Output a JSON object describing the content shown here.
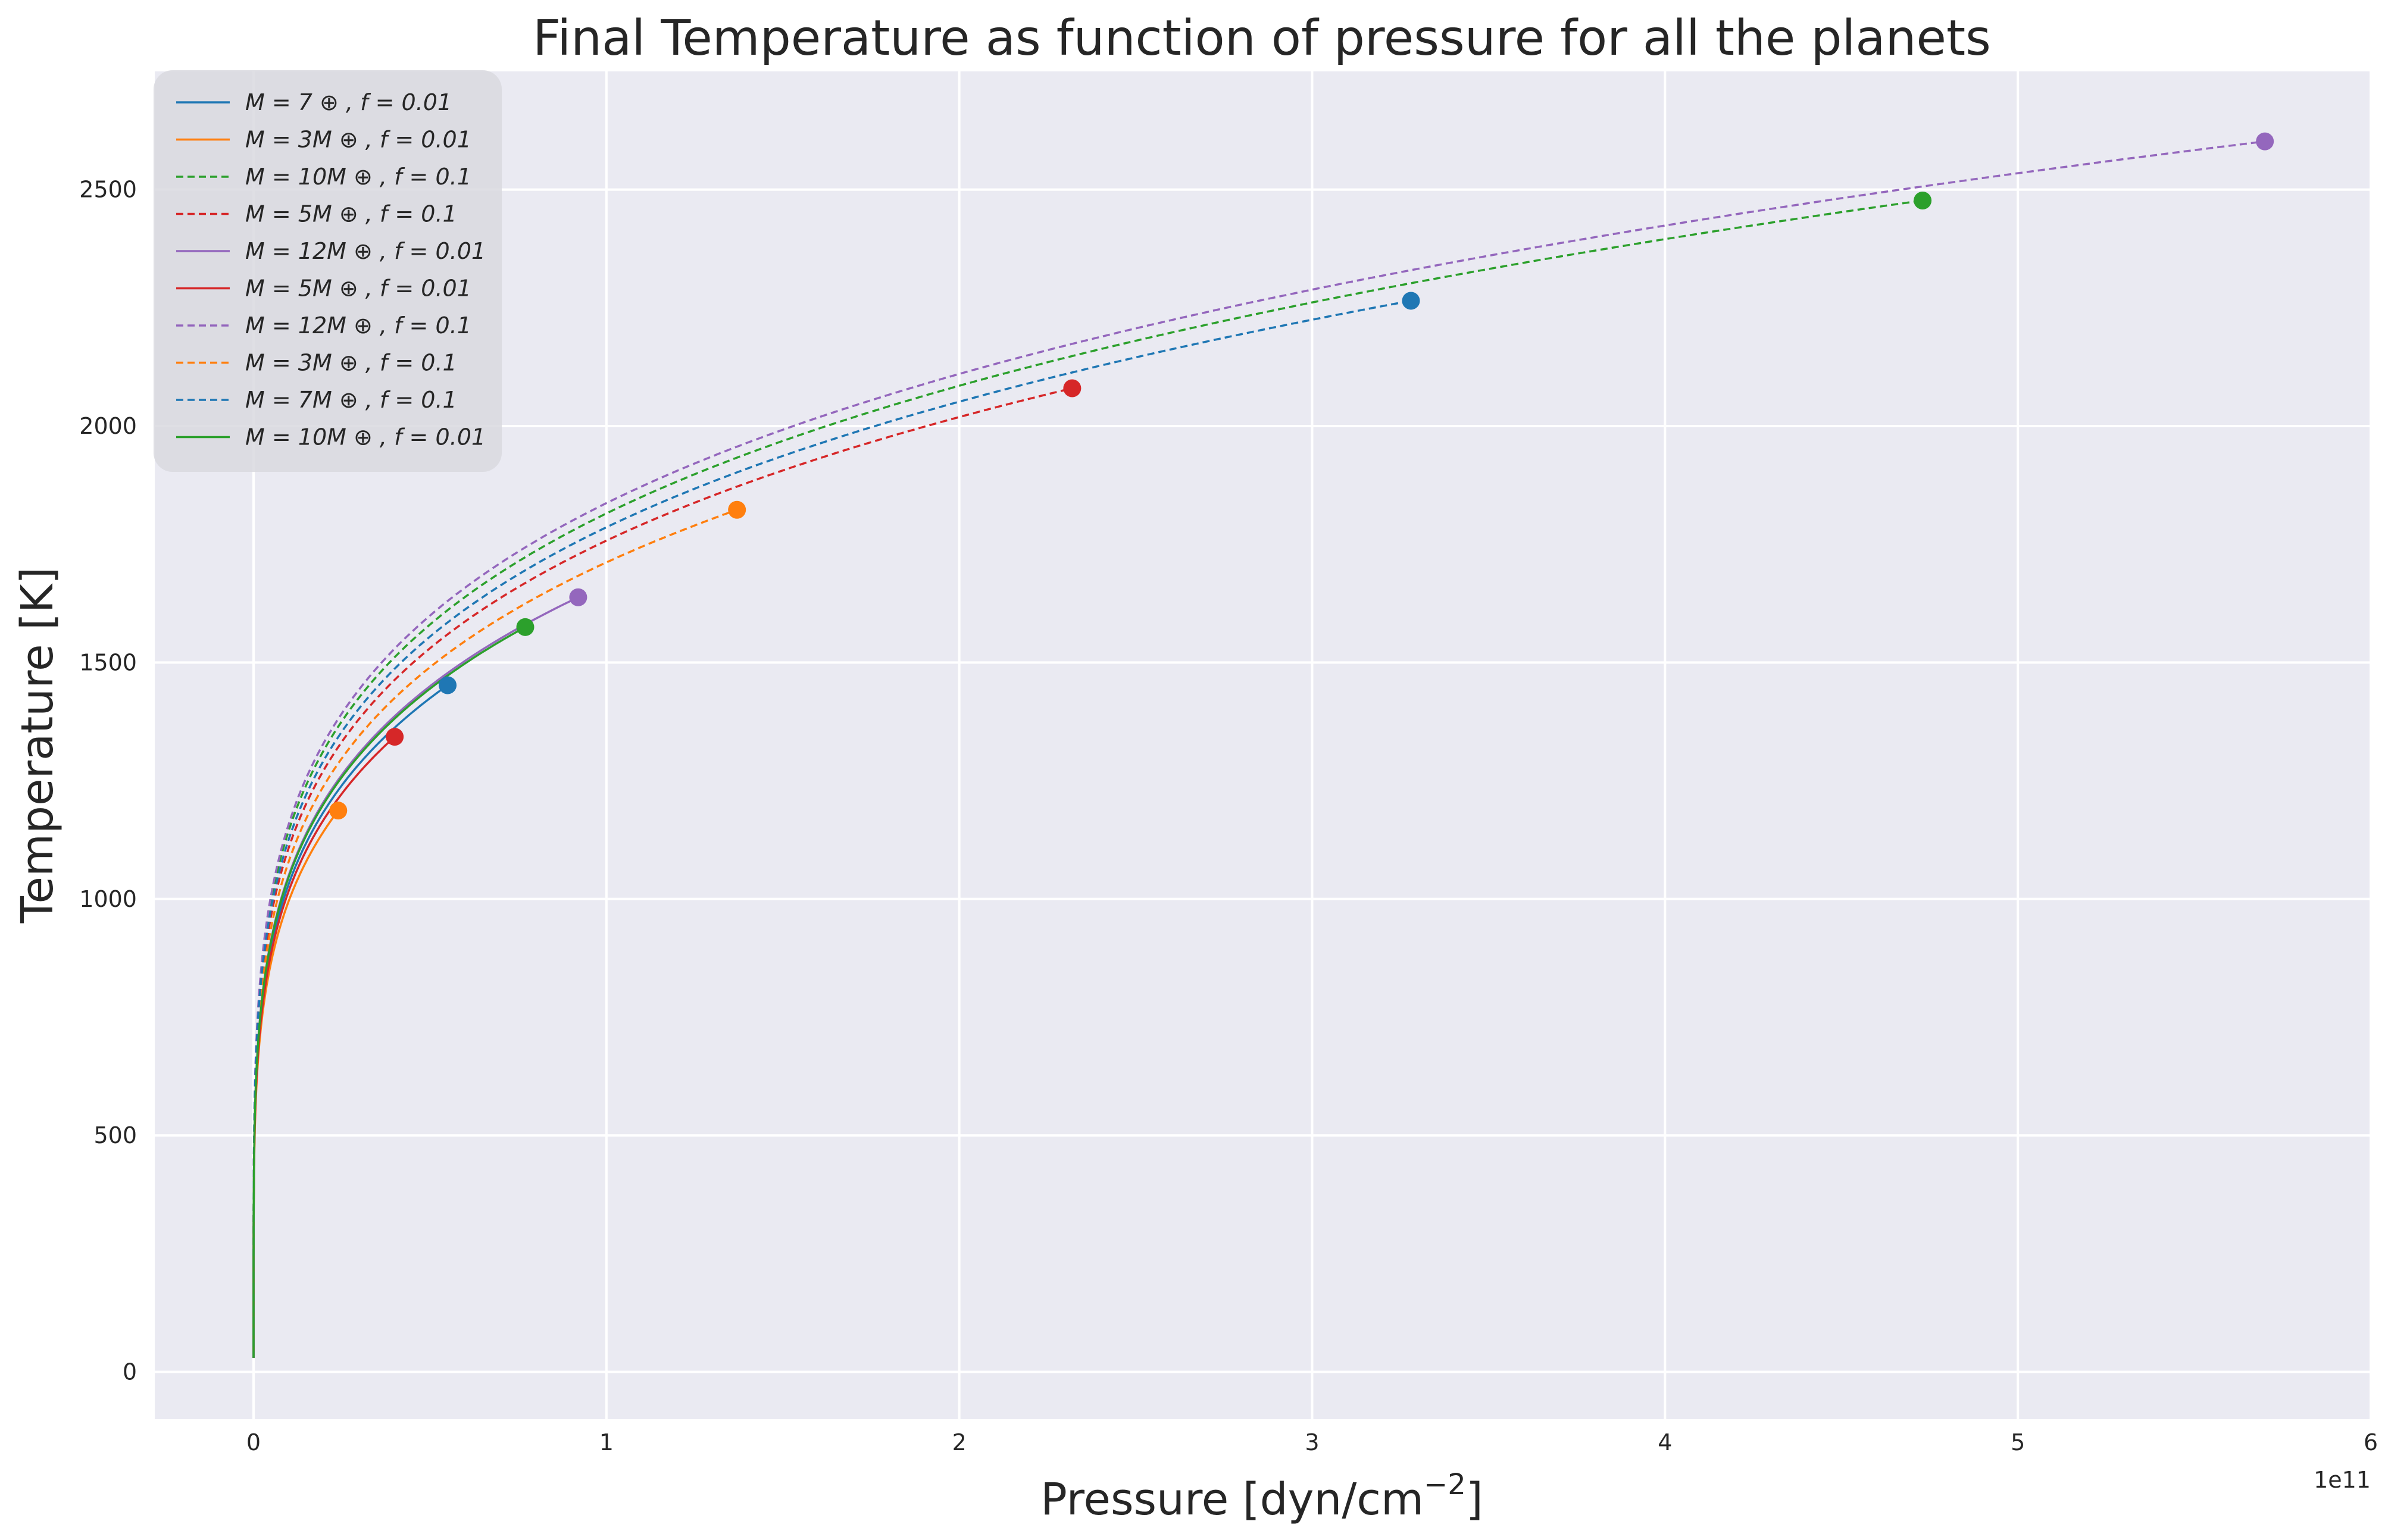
{
  "chart_data": {
    "type": "line",
    "title": "Final Temperature as function of pressure for all the planets",
    "xlabel": "Pressure [dyn/cm",
    "xlabel_sup": "−2",
    "xlabel_suffix": "]",
    "ylabel": "Temperature [K]",
    "x_offset_text": "1e11",
    "xlim": [
      -0.28,
      6.0
    ],
    "ylim": [
      -100,
      2750
    ],
    "x_ticks": [
      0,
      1,
      2,
      3,
      4,
      5,
      6
    ],
    "x_tick_labels": [
      "0",
      "1",
      "2",
      "3",
      "4",
      "5",
      "6"
    ],
    "y_ticks": [
      0,
      500,
      1000,
      1500,
      2000,
      2500
    ],
    "y_tick_labels": [
      "0",
      "500",
      "1000",
      "1500",
      "2000",
      "2500"
    ],
    "grid": true,
    "legend_position": "top-left",
    "colors": {
      "background": "#eaeaf2",
      "grid": "#ffffff",
      "blue": "#1f77b4",
      "orange": "#ff7f0e",
      "green": "#2ca02c",
      "red": "#d62728",
      "purple": "#9467bd"
    },
    "series": [
      {
        "name": "M = 7 ⊕ , f = 0.01",
        "color": "#1f77b4",
        "dash": false,
        "end_x": 0.55,
        "end_y": 1452
      },
      {
        "name": "M = 3M ⊕ , f = 0.01",
        "color": "#ff7f0e",
        "dash": false,
        "end_x": 0.24,
        "end_y": 1187
      },
      {
        "name": "M = 10M ⊕ , f = 0.1",
        "color": "#2ca02c",
        "dash": true,
        "end_x": 4.73,
        "end_y": 2477
      },
      {
        "name": "M = 5M ⊕ , f = 0.1",
        "color": "#d62728",
        "dash": true,
        "end_x": 2.32,
        "end_y": 2080
      },
      {
        "name": "M = 12M ⊕ , f = 0.01",
        "color": "#9467bd",
        "dash": false,
        "end_x": 0.92,
        "end_y": 1638
      },
      {
        "name": "M = 5M ⊕ , f = 0.01",
        "color": "#d62728",
        "dash": false,
        "end_x": 0.4,
        "end_y": 1343
      },
      {
        "name": "M = 12M ⊕ , f = 0.1",
        "color": "#9467bd",
        "dash": true,
        "end_x": 5.7,
        "end_y": 2602
      },
      {
        "name": "M = 3M ⊕ , f = 0.1",
        "color": "#ff7f0e",
        "dash": true,
        "end_x": 1.37,
        "end_y": 1823
      },
      {
        "name": "M = 7M ⊕ , f = 0.1",
        "color": "#1f77b4",
        "dash": true,
        "end_x": 3.28,
        "end_y": 2265
      },
      {
        "name": "M = 10M ⊕ , f = 0.01",
        "color": "#2ca02c",
        "dash": false,
        "end_x": 0.77,
        "end_y": 1575
      }
    ]
  }
}
